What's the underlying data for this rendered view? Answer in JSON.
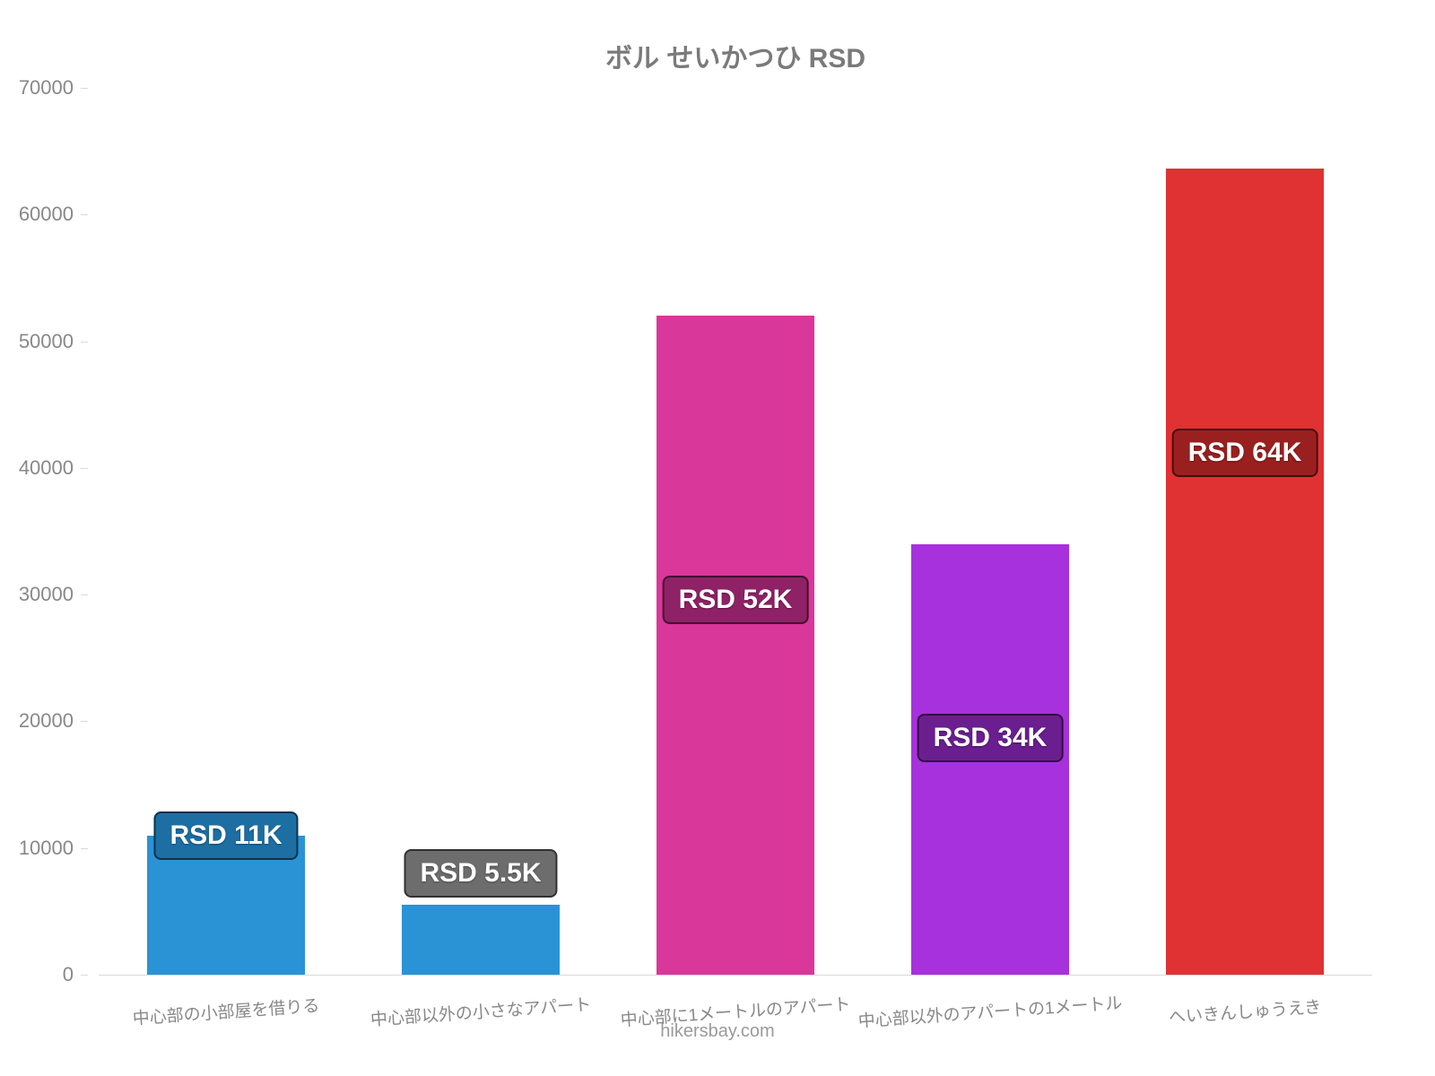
{
  "chart": {
    "type": "bar",
    "title": "ボル せいかつひ RSD",
    "title_fontsize": 30,
    "title_color": "#7a7a7a",
    "background_color": "#ffffff",
    "axis_label_color": "#888888",
    "axis_fontsize": 22,
    "category_label_fontsize": 19,
    "category_label_rotation_deg": -4,
    "value_label_fontsize": 30,
    "ylim": [
      0,
      70000
    ],
    "ytick_step": 10000,
    "yticks": [
      {
        "value": 0,
        "label": "0"
      },
      {
        "value": 10000,
        "label": "10000"
      },
      {
        "value": 20000,
        "label": "20000"
      },
      {
        "value": 30000,
        "label": "30000"
      },
      {
        "value": 40000,
        "label": "40000"
      },
      {
        "value": 50000,
        "label": "50000"
      },
      {
        "value": 60000,
        "label": "60000"
      },
      {
        "value": 70000,
        "label": "70000"
      }
    ],
    "grid": false,
    "bar_width_ratio": 0.62,
    "bars": [
      {
        "category": "中心部の小部屋を借りる",
        "value": 11000,
        "value_label": "RSD 11K",
        "color": "#2a93d6",
        "label_bg": "#1d6fa3"
      },
      {
        "category": "中心部以外の小さなアパート",
        "value": 5500,
        "value_label": "RSD 5.5K",
        "color": "#2a93d6",
        "label_bg": "#6d6d6d"
      },
      {
        "category": "中心部に1メートルのアパート",
        "value": 52000,
        "value_label": "RSD 52K",
        "color": "#d9379a",
        "label_bg": "#8f2266"
      },
      {
        "category": "中心部以外のアパートの1メートル",
        "value": 34000,
        "value_label": "RSD 34K",
        "color": "#a731dd",
        "label_bg": "#6b1e90"
      },
      {
        "category": "へいきんしゅうえき",
        "value": 63600,
        "value_label": "RSD 64K",
        "color": "#e03232",
        "label_bg": "#9a2020"
      }
    ],
    "attribution": "hikersbay.com",
    "attribution_fontsize": 20
  }
}
